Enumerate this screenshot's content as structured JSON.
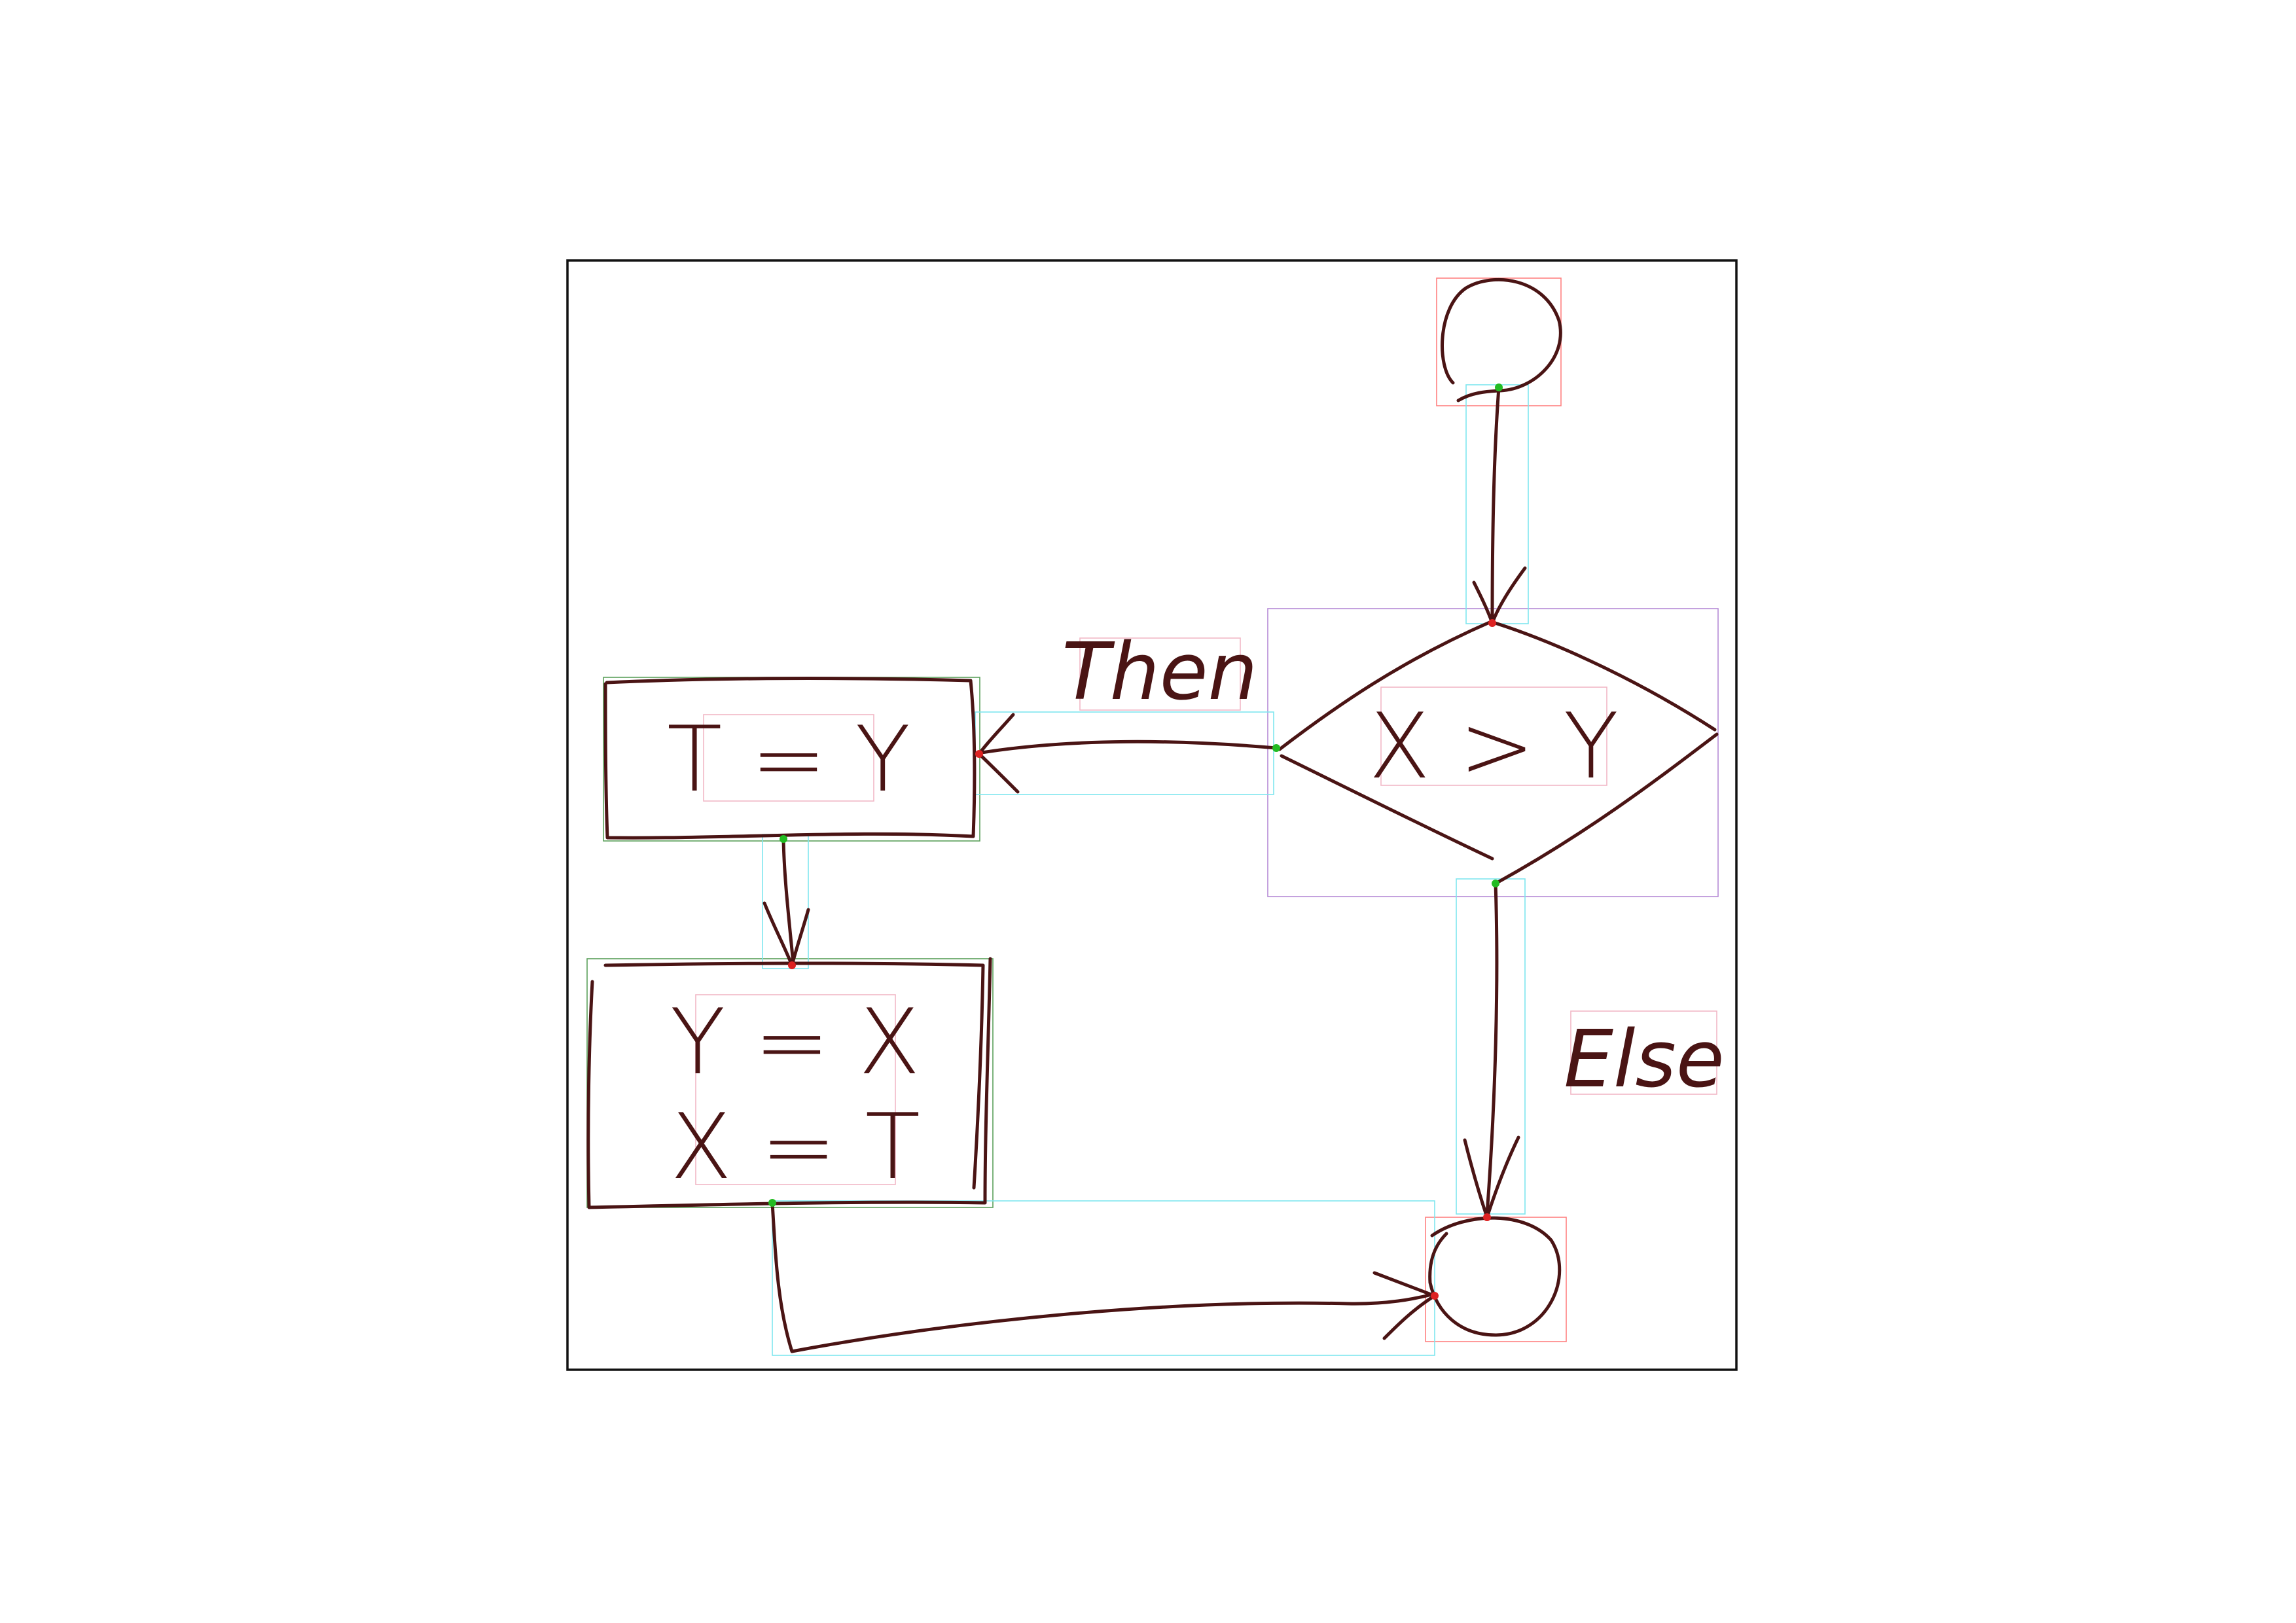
{
  "diagram": {
    "type": "flowchart",
    "style": "hand-drawn",
    "nodes": [
      {
        "id": "start",
        "shape": "circle",
        "lines": []
      },
      {
        "id": "decision",
        "shape": "diamond",
        "lines": [
          "X > Y"
        ]
      },
      {
        "id": "assign-t",
        "shape": "rectangle",
        "lines": [
          "T = Y"
        ]
      },
      {
        "id": "swap",
        "shape": "rectangle",
        "lines": [
          "Y = X",
          "X = T"
        ]
      },
      {
        "id": "end",
        "shape": "circle",
        "lines": []
      }
    ],
    "edges": [
      {
        "from": "start",
        "to": "decision",
        "label": ""
      },
      {
        "from": "decision",
        "to": "assign-t",
        "label": "Then"
      },
      {
        "from": "decision",
        "to": "end",
        "label": "Else"
      },
      {
        "from": "assign-t",
        "to": "swap",
        "label": ""
      },
      {
        "from": "swap",
        "to": "end",
        "label": ""
      }
    ],
    "colors": {
      "ink": "#4a1414",
      "frame": "#111111",
      "node_bbox_circle": "#ff8080",
      "node_bbox_diamond": "#b58ad6",
      "node_bbox_rect": "#5aa05a",
      "edge_bbox": "#7fe6ee",
      "text_bbox": "#f2b8c6",
      "start_point": "#22bb22",
      "end_point": "#dd2222"
    }
  }
}
